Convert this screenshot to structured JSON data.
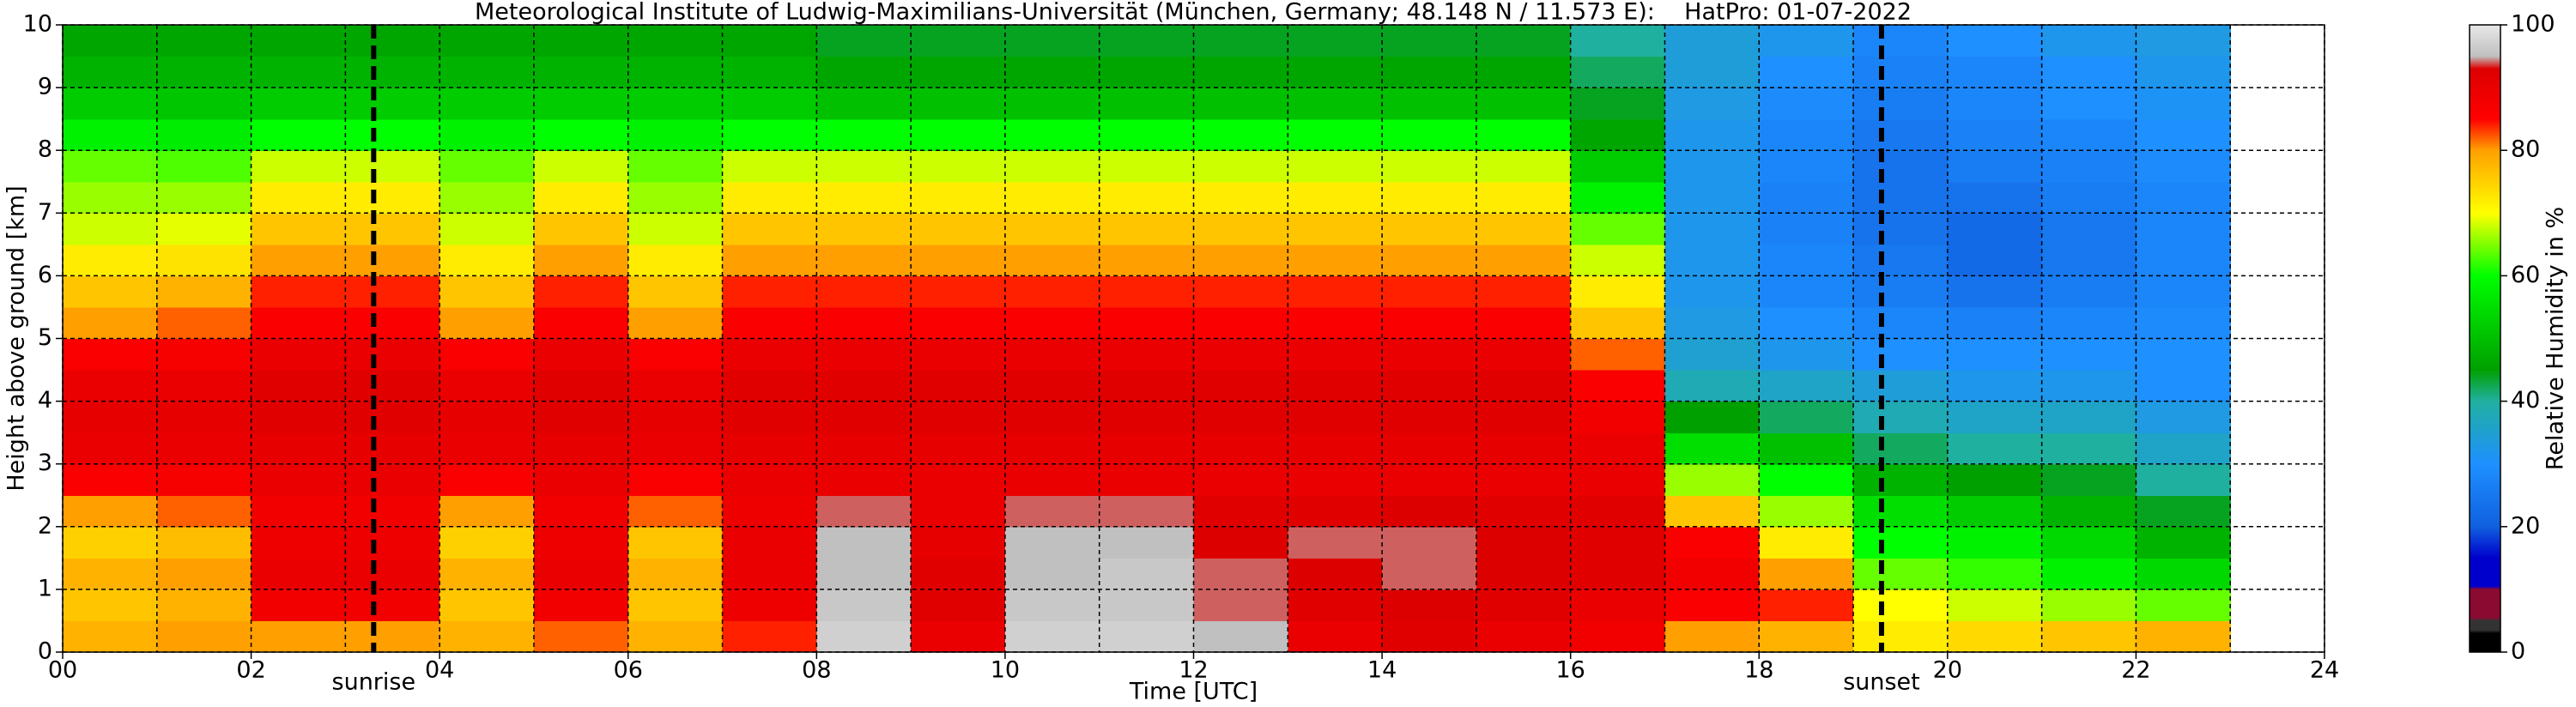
{
  "chart_data": {
    "type": "heatmap",
    "title": "Meteorological Institute of Ludwig-Maximilians-Universität (München, Germany; 48.148 N / 11.573 E):    HatPro: 01-07-2022",
    "xlabel": "Time [UTC]",
    "ylabel": "Height above ground [km]",
    "xlim": [
      0,
      24
    ],
    "ylim": [
      0,
      10
    ],
    "xticks": [
      {
        "value": 0,
        "label": "00"
      },
      {
        "value": 2,
        "label": "02"
      },
      {
        "value": 4,
        "label": "04"
      },
      {
        "value": 6,
        "label": "06"
      },
      {
        "value": 8,
        "label": "08"
      },
      {
        "value": 10,
        "label": "10"
      },
      {
        "value": 12,
        "label": "12"
      },
      {
        "value": 14,
        "label": "14"
      },
      {
        "value": 16,
        "label": "16"
      },
      {
        "value": 18,
        "label": "18"
      },
      {
        "value": 20,
        "label": "20"
      },
      {
        "value": 22,
        "label": "22"
      },
      {
        "value": 24,
        "label": "24"
      }
    ],
    "xminorticks": [
      1,
      3,
      5,
      7,
      9,
      11,
      13,
      15,
      17,
      19,
      21,
      23
    ],
    "yticks": [
      0,
      1,
      2,
      3,
      4,
      5,
      6,
      7,
      8,
      9,
      10
    ],
    "grid": true,
    "xbins": [
      0,
      1,
      2,
      3,
      4,
      5,
      6,
      7,
      8,
      9,
      10,
      11,
      12,
      13,
      14,
      15,
      16,
      17,
      18,
      19,
      20,
      21,
      22,
      23
    ],
    "ybins": [
      0,
      0.5,
      1,
      1.5,
      2,
      2.5,
      3,
      3.5,
      4,
      4.5,
      5,
      5.5,
      6,
      6.5,
      7,
      7.5,
      8,
      8.5,
      9,
      9.5,
      10
    ],
    "z": [
      [
        78,
        76,
        78,
        75,
        80,
        86,
        90,
        91,
        90,
        86,
        80,
        76,
        72,
        68,
        66,
        64,
        58,
        52,
        48,
        46
      ],
      [
        80,
        78,
        80,
        77,
        82,
        87,
        90,
        91,
        90,
        87,
        82,
        78,
        73,
        69,
        66,
        63,
        57,
        51,
        48,
        46
      ],
      [
        80,
        88,
        90,
        89,
        88,
        90,
        91,
        92,
        92,
        90,
        86,
        84,
        80,
        76,
        72,
        68,
        60,
        52,
        48,
        46
      ],
      [
        80,
        88,
        90,
        89,
        88,
        90,
        91,
        92,
        92,
        90,
        86,
        84,
        80,
        76,
        72,
        68,
        60,
        52,
        48,
        46
      ],
      [
        78,
        76,
        78,
        75,
        80,
        86,
        90,
        91,
        90,
        86,
        80,
        76,
        72,
        68,
        66,
        64,
        58,
        52,
        48,
        46
      ],
      [
        82,
        88,
        90,
        89,
        88,
        90,
        91,
        92,
        92,
        90,
        86,
        84,
        80,
        76,
        72,
        68,
        60,
        52,
        48,
        46
      ],
      [
        78,
        76,
        78,
        76,
        82,
        86,
        90,
        91,
        90,
        86,
        80,
        76,
        72,
        68,
        66,
        64,
        58,
        52,
        48,
        46
      ],
      [
        84,
        89,
        90,
        90,
        89,
        90,
        91,
        92,
        92,
        90,
        86,
        84,
        80,
        76,
        72,
        68,
        60,
        52,
        48,
        46
      ],
      [
        97,
        96,
        95,
        95,
        94,
        90,
        91,
        92,
        92,
        90,
        86,
        84,
        80,
        76,
        72,
        68,
        60,
        50,
        46,
        44
      ],
      [
        90,
        92,
        92,
        91,
        90,
        90,
        91,
        92,
        92,
        90,
        86,
        84,
        80,
        76,
        72,
        68,
        60,
        50,
        46,
        44
      ],
      [
        97,
        96,
        95,
        95,
        94,
        90,
        91,
        92,
        92,
        90,
        86,
        84,
        80,
        76,
        72,
        68,
        60,
        50,
        46,
        44
      ],
      [
        97,
        96,
        96,
        95,
        94,
        90,
        91,
        92,
        92,
        90,
        86,
        84,
        80,
        76,
        72,
        68,
        60,
        50,
        46,
        44
      ],
      [
        95,
        94,
        94,
        93,
        92,
        90,
        91,
        92,
        92,
        90,
        86,
        84,
        80,
        76,
        72,
        68,
        60,
        50,
        46,
        44
      ],
      [
        90,
        92,
        93,
        94,
        92,
        90,
        91,
        92,
        92,
        90,
        86,
        84,
        80,
        76,
        72,
        68,
        60,
        50,
        46,
        44
      ],
      [
        92,
        93,
        94,
        94,
        93,
        90,
        91,
        92,
        92,
        90,
        86,
        84,
        80,
        76,
        72,
        68,
        60,
        50,
        46,
        44
      ],
      [
        90,
        92,
        93,
        93,
        92,
        90,
        91,
        92,
        92,
        90,
        86,
        84,
        80,
        76,
        72,
        68,
        60,
        50,
        46,
        44
      ],
      [
        88,
        90,
        92,
        92,
        92,
        90,
        90,
        88,
        86,
        82,
        76,
        72,
        68,
        64,
        58,
        52,
        46,
        44,
        42,
        40
      ],
      [
        80,
        86,
        88,
        86,
        76,
        66,
        55,
        45,
        38,
        35,
        33,
        32,
        32,
        32,
        32,
        32,
        32,
        33,
        34,
        34
      ],
      [
        78,
        84,
        80,
        72,
        66,
        60,
        50,
        42,
        36,
        32,
        30,
        28,
        28,
        27,
        27,
        28,
        28,
        29,
        30,
        32
      ],
      [
        72,
        70,
        64,
        60,
        55,
        48,
        42,
        38,
        34,
        30,
        28,
        26,
        25,
        24,
        24,
        24,
        25,
        26,
        27,
        28
      ],
      [
        74,
        68,
        62,
        58,
        52,
        45,
        40,
        36,
        32,
        30,
        27,
        24,
        22,
        22,
        24,
        26,
        27,
        28,
        28,
        30
      ],
      [
        76,
        66,
        58,
        54,
        48,
        44,
        40,
        36,
        32,
        30,
        28,
        26,
        25,
        25,
        26,
        27,
        28,
        30,
        30,
        32
      ],
      [
        78,
        64,
        54,
        48,
        44,
        40,
        36,
        33,
        30,
        30,
        29,
        28,
        28,
        28,
        28,
        29,
        30,
        31,
        32,
        33
      ]
    ],
    "colorscale": [
      [
        0,
        "#000000"
      ],
      [
        3,
        "#000000"
      ],
      [
        3.5,
        "#333333"
      ],
      [
        5,
        "#333333"
      ],
      [
        5.5,
        "#8b0a32"
      ],
      [
        10,
        "#8b0a32"
      ],
      [
        10.5,
        "#0000cc"
      ],
      [
        15,
        "#0000cc"
      ],
      [
        20,
        "#1060e0"
      ],
      [
        30,
        "#1e90ff"
      ],
      [
        40,
        "#20b0a0"
      ],
      [
        45,
        "#00a000"
      ],
      [
        60,
        "#00ff00"
      ],
      [
        70,
        "#ffff00"
      ],
      [
        80,
        "#ffa000"
      ],
      [
        85,
        "#ff0000"
      ],
      [
        93,
        "#dd0000"
      ],
      [
        95,
        "#c0c0c0"
      ],
      [
        100,
        "#e8e8e8"
      ]
    ],
    "colorbar": {
      "label": "Relative Humidity in %",
      "lim": [
        0,
        100
      ],
      "ticks": [
        0,
        20,
        40,
        60,
        80,
        100
      ]
    },
    "annotations": [
      {
        "x": 3.3,
        "text": "sunrise"
      },
      {
        "x": 19.3,
        "text": "sunset"
      }
    ]
  }
}
